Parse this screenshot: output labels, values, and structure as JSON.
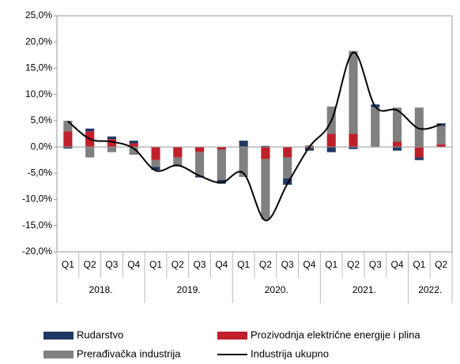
{
  "chart_data": {
    "type": "bar",
    "stacked": true,
    "categories": [
      "Q1",
      "Q2",
      "Q3",
      "Q4",
      "Q1",
      "Q2",
      "Q3",
      "Q4",
      "Q1",
      "Q2",
      "Q3",
      "Q4",
      "Q1",
      "Q2",
      "Q3",
      "Q4",
      "Q1",
      "Q2"
    ],
    "groups": [
      {
        "label": "2018.",
        "count": 4
      },
      {
        "label": "2019.",
        "count": 4
      },
      {
        "label": "2020.",
        "count": 4
      },
      {
        "label": "2021.",
        "count": 4
      },
      {
        "label": "2022.",
        "count": 2
      }
    ],
    "series": [
      {
        "name": "Rudarstvo",
        "color": "#1f3864",
        "values": [
          -0.3,
          0.5,
          0.5,
          0.5,
          -0.6,
          -0.2,
          -0.3,
          -0.7,
          1.2,
          0.2,
          -1.2,
          -0.5,
          -1.0,
          -0.4,
          0.5,
          -0.7,
          -0.5,
          0.5
        ]
      },
      {
        "name": "Prozivodnja električne energije i plina",
        "color": "#c0202a",
        "values": [
          3.0,
          3.0,
          1.5,
          0.7,
          -2.5,
          -2.0,
          -1.0,
          -0.5,
          0.0,
          -2.3,
          -2.0,
          -0.2,
          2.5,
          2.5,
          0.1,
          1.0,
          -2.0,
          0.5
        ]
      },
      {
        "name": "Prerađivačka industrija",
        "color": "#808080",
        "values": [
          2.0,
          -2.0,
          -1.0,
          -1.5,
          -1.3,
          -1.5,
          -4.5,
          -5.8,
          -5.7,
          -11.5,
          -4.0,
          0.3,
          5.2,
          15.8,
          7.5,
          6.5,
          7.5,
          3.5
        ]
      },
      {
        "name": "Industrija ukupno",
        "color": "#000000",
        "type": "line",
        "values": [
          4.9,
          1.5,
          1.0,
          -0.3,
          -4.5,
          -3.5,
          -5.5,
          -6.8,
          -5.0,
          -14.0,
          -7.0,
          0.0,
          5.0,
          18.0,
          7.7,
          7.0,
          3.5,
          4.3
        ]
      }
    ],
    "ylim": [
      -20,
      25
    ],
    "yticks": [
      {
        "value": -20,
        "label": "-20,0%"
      },
      {
        "value": -15,
        "label": "-15,0%"
      },
      {
        "value": -10,
        "label": "-10,0%"
      },
      {
        "value": -5,
        "label": "-5,0%"
      },
      {
        "value": 0,
        "label": "0,0%"
      },
      {
        "value": 5,
        "label": "5,0%"
      },
      {
        "value": 10,
        "label": "10,0%"
      },
      {
        "value": 15,
        "label": "15,0%"
      },
      {
        "value": 20,
        "label": "20,0%"
      },
      {
        "value": 25,
        "label": "25,0%"
      }
    ]
  }
}
